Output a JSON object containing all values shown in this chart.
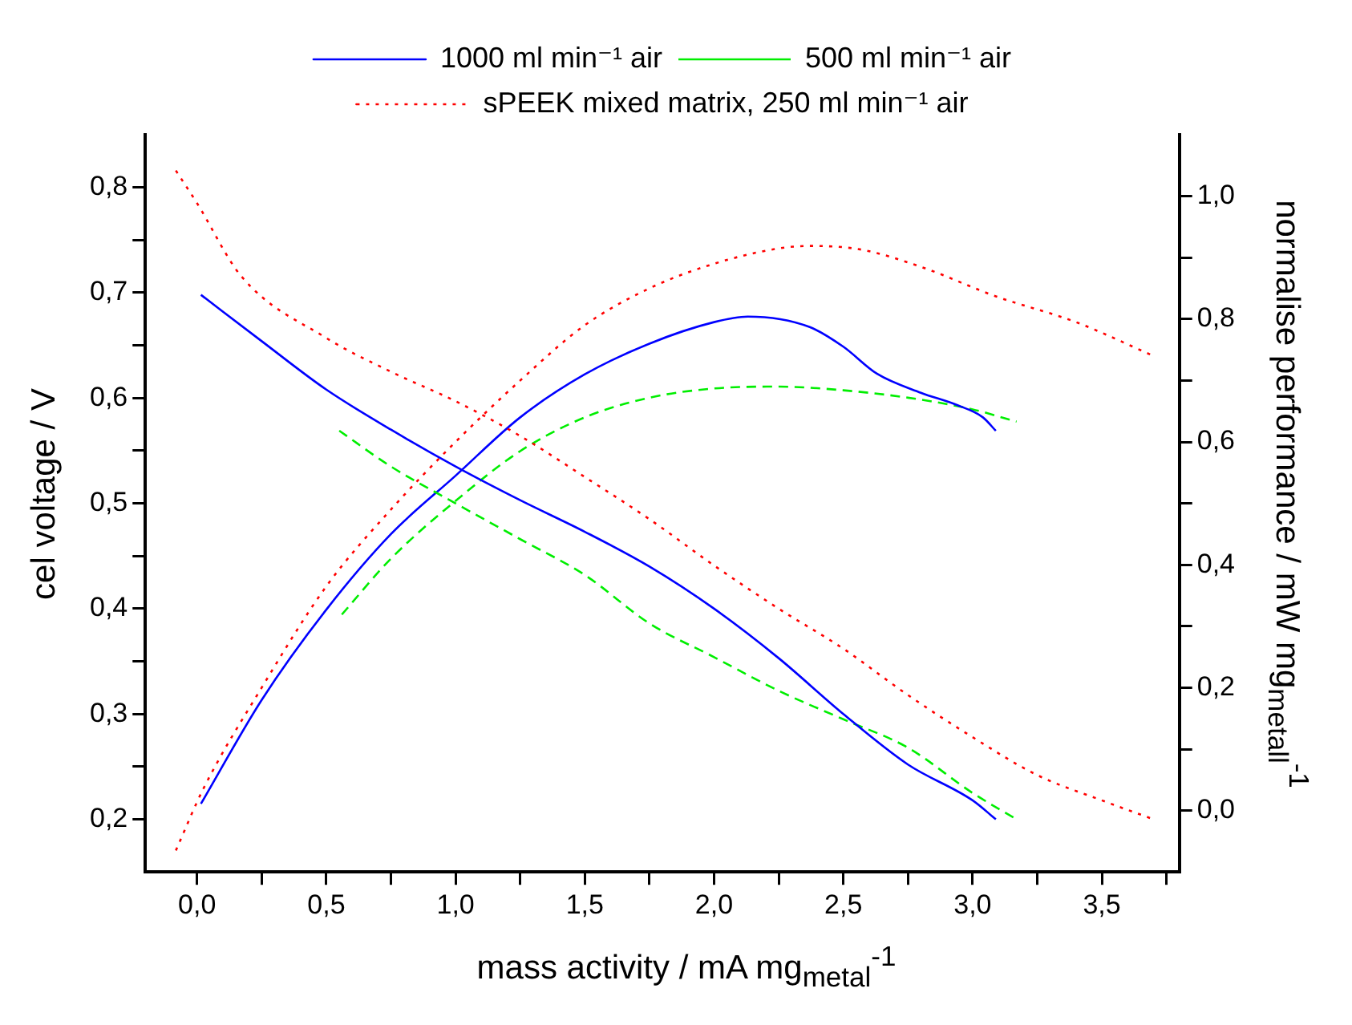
{
  "chart_data": {
    "type": "line",
    "xlabel": "mass activity / mA mg$_{metal}$$^{-1}$",
    "ylabel": "cel voltage / V",
    "y2label": "normalise performance / mW mg$_{metall}$$^{-1}$",
    "xlim": [
      -0.2,
      3.8
    ],
    "xticks": [
      {
        "value": 0,
        "label": "0,0"
      },
      {
        "value": 0.25,
        "label": null
      },
      {
        "value": 0.5,
        "label": "0,5"
      },
      {
        "value": 0.75,
        "label": null
      },
      {
        "value": 1,
        "label": "1,0"
      },
      {
        "value": 1.25,
        "label": null
      },
      {
        "value": 1.5,
        "label": "1,5"
      },
      {
        "value": 1.75,
        "label": null
      },
      {
        "value": 2,
        "label": "2,0"
      },
      {
        "value": 2.25,
        "label": null
      },
      {
        "value": 2.5,
        "label": "2,5"
      },
      {
        "value": 2.75,
        "label": null
      },
      {
        "value": 3,
        "label": "3,0"
      },
      {
        "value": 3.25,
        "label": null
      },
      {
        "value": 3.5,
        "label": "3,5"
      },
      {
        "value": 3.75,
        "label": null
      }
    ],
    "ylim": [
      0.15,
      0.85
    ],
    "yticks": [
      {
        "value": 0.2,
        "label": "0,2"
      },
      {
        "value": 0.25,
        "label": null
      },
      {
        "value": 0.3,
        "label": "0,3"
      },
      {
        "value": 0.35,
        "label": null
      },
      {
        "value": 0.4,
        "label": "0,4"
      },
      {
        "value": 0.45,
        "label": null
      },
      {
        "value": 0.5,
        "label": "0,5"
      },
      {
        "value": 0.55,
        "label": null
      },
      {
        "value": 0.6,
        "label": "0,6"
      },
      {
        "value": 0.65,
        "label": null
      },
      {
        "value": 0.7,
        "label": "0,7"
      },
      {
        "value": 0.75,
        "label": null
      },
      {
        "value": 0.8,
        "label": "0,8"
      }
    ],
    "y2lim": [
      -0.1,
      1.1
    ],
    "y2ticks": [
      {
        "value": 0,
        "label": "0,0"
      },
      {
        "value": 0.1,
        "label": null
      },
      {
        "value": 0.2,
        "label": "0,2"
      },
      {
        "value": 0.3,
        "label": null
      },
      {
        "value": 0.4,
        "label": "0,4"
      },
      {
        "value": 0.5,
        "label": null
      },
      {
        "value": 0.6,
        "label": "0,6"
      },
      {
        "value": 0.7,
        "label": null
      },
      {
        "value": 0.8,
        "label": "0,8"
      },
      {
        "value": 0.9,
        "label": null
      },
      {
        "value": 1,
        "label": "1,0"
      }
    ],
    "grid": false,
    "legend": "top",
    "marker": "none",
    "series": [
      {
        "name": "1000 ml min⁻¹ air",
        "color": "#0000ff",
        "line_style": "solid",
        "x": [
          0.015,
          0.25,
          0.5,
          0.75,
          1.0,
          1.25,
          1.5,
          1.75,
          2.0,
          2.25,
          2.5,
          2.75,
          3.0,
          3.09
        ],
        "values": [
          0.698,
          0.654,
          0.608,
          0.57,
          0.535,
          0.503,
          0.473,
          0.44,
          0.4,
          0.353,
          0.3,
          0.252,
          0.218,
          0.2
        ]
      },
      {
        "name": "500 ml min⁻¹ air",
        "color": "#00ee00",
        "line_style": "dashed",
        "x": [
          0.55,
          0.75,
          1.0,
          1.25,
          1.5,
          1.75,
          2.0,
          2.25,
          2.5,
          2.75,
          3.0,
          3.17
        ],
        "values": [
          0.569,
          0.535,
          0.5,
          0.466,
          0.432,
          0.386,
          0.354,
          0.322,
          0.295,
          0.268,
          0.225,
          0.2
        ]
      },
      {
        "name": "sPEEK mixed matrix, 250 ml min⁻¹ air",
        "color": "#ff0000",
        "line_style": "dotted",
        "x": [
          -0.082,
          0.0,
          0.17,
          0.5,
          0.75,
          1.0,
          1.25,
          1.5,
          1.75,
          2.0,
          2.25,
          2.5,
          2.75,
          3.0,
          3.25,
          3.5,
          3.7
        ],
        "values": [
          0.816,
          0.785,
          0.716,
          0.657,
          0.625,
          0.597,
          0.564,
          0.525,
          0.485,
          0.441,
          0.4,
          0.362,
          0.318,
          0.278,
          0.242,
          0.218,
          0.2
        ]
      },
      {
        "color": "#0000ff",
        "line_style": "solid",
        "axis": "y2",
        "x": [
          0.015,
          0.25,
          0.5,
          0.75,
          1.0,
          1.25,
          1.5,
          1.75,
          2.0,
          2.13,
          2.37,
          2.5,
          2.63,
          2.8,
          2.94,
          3.04,
          3.09
        ],
        "values": [
          0.011,
          0.18,
          0.327,
          0.45,
          0.545,
          0.64,
          0.71,
          0.76,
          0.795,
          0.804,
          0.787,
          0.755,
          0.711,
          0.68,
          0.66,
          0.64,
          0.618
        ]
      },
      {
        "color": "#00ee00",
        "line_style": "dashed",
        "axis": "y2",
        "x": [
          0.56,
          0.75,
          1.0,
          1.25,
          1.5,
          1.75,
          2.0,
          2.25,
          2.5,
          2.75,
          3.0,
          3.17
        ],
        "values": [
          0.319,
          0.41,
          0.504,
          0.585,
          0.64,
          0.672,
          0.687,
          0.69,
          0.684,
          0.672,
          0.653,
          0.633
        ]
      },
      {
        "color": "#ff0000",
        "line_style": "dotted",
        "axis": "y2",
        "x": [
          -0.082,
          0.025,
          0.25,
          0.5,
          0.75,
          1.0,
          1.25,
          1.5,
          1.75,
          2.0,
          2.25,
          2.37,
          2.57,
          2.8,
          3.09,
          3.4,
          3.7
        ],
        "values": [
          -0.065,
          0.036,
          0.2,
          0.365,
          0.49,
          0.6,
          0.7,
          0.79,
          0.85,
          0.89,
          0.915,
          0.919,
          0.913,
          0.885,
          0.837,
          0.795,
          0.74
        ]
      }
    ]
  }
}
